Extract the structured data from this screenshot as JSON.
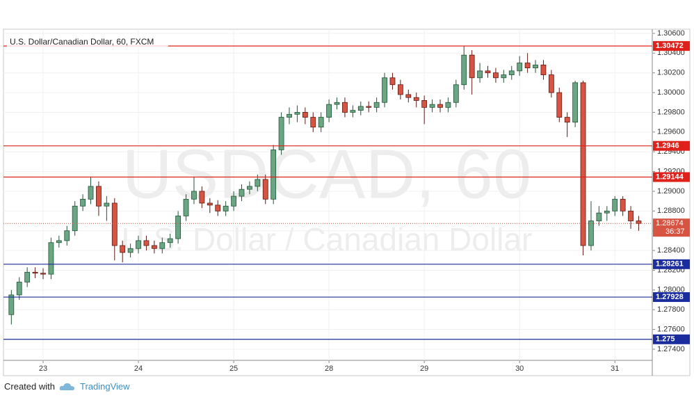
{
  "chart_data": {
    "type": "candlestick",
    "title": "U.S. Dollar/Canadian Dollar, 60, FXCM",
    "watermark": "USDCAD, 60",
    "watermark_subtitle": "U.S. Dollar / Canadian Dollar",
    "categories": [
      null,
      null,
      null,
      null,
      "23",
      null,
      null,
      null,
      null,
      null,
      null,
      null,
      null,
      null,
      null,
      null,
      "24",
      null,
      null,
      null,
      null,
      null,
      null,
      null,
      null,
      null,
      null,
      null,
      "25",
      null,
      null,
      null,
      null,
      null,
      null,
      null,
      null,
      null,
      null,
      null,
      "28",
      null,
      null,
      null,
      null,
      null,
      null,
      null,
      null,
      null,
      null,
      null,
      "29",
      null,
      null,
      null,
      null,
      null,
      null,
      null,
      null,
      null,
      null,
      null,
      "30",
      null,
      null,
      null,
      null,
      null,
      null,
      null,
      null,
      null,
      null,
      null,
      "31",
      null,
      null,
      null
    ],
    "open": [
      1.2775,
      1.2795,
      1.2808,
      1.2818,
      1.2817,
      1.2816,
      1.2848,
      1.285,
      1.286,
      1.2885,
      1.2892,
      1.2905,
      1.2885,
      1.2888,
      1.2845,
      1.2838,
      1.2842,
      1.285,
      1.2845,
      1.2842,
      1.2848,
      1.2852,
      1.2875,
      1.2892,
      1.29,
      1.2888,
      1.2886,
      1.288,
      1.2885,
      1.2895,
      1.2902,
      1.2905,
      1.2912,
      1.2892,
      1.2942,
      1.2975,
      1.2978,
      1.298,
      1.2975,
      1.2965,
      1.2975,
      1.2988,
      1.299,
      1.298,
      1.2982,
      1.2986,
      1.2985,
      1.299,
      1.3015,
      1.3008,
      1.2998,
      1.2995,
      1.2992,
      1.2985,
      1.2988,
      1.2985,
      1.299,
      1.3008,
      1.3038,
      1.3015,
      1.3022,
      1.302,
      1.3015,
      1.3018,
      1.3022,
      1.303,
      1.3025,
      1.3028,
      1.3018,
      1.3,
      1.2975,
      1.297,
      1.301,
      1.2845,
      1.287,
      1.2878,
      1.288,
      1.2892,
      1.288,
      1.287
    ],
    "high": [
      1.28,
      1.2813,
      1.2823,
      1.2823,
      1.2822,
      1.2853,
      1.2855,
      1.2865,
      1.289,
      1.2897,
      1.2915,
      1.291,
      1.2895,
      1.2893,
      1.285,
      1.2847,
      1.2855,
      1.2855,
      1.285,
      1.2853,
      1.2857,
      1.288,
      1.2897,
      1.2915,
      1.2905,
      1.2893,
      1.2891,
      1.289,
      1.29,
      1.2907,
      1.291,
      1.2917,
      1.2917,
      1.2947,
      1.298,
      1.2985,
      1.2987,
      1.2985,
      1.298,
      1.298,
      1.2993,
      1.2995,
      1.2995,
      1.2987,
      1.2991,
      1.2991,
      1.2995,
      1.302,
      1.302,
      1.3013,
      1.3003,
      1.3,
      1.2997,
      1.2993,
      1.2993,
      1.2995,
      1.3013,
      1.3047,
      1.3043,
      1.303,
      1.3027,
      1.3025,
      1.3023,
      1.3027,
      1.3037,
      1.304,
      1.3033,
      1.3033,
      1.3023,
      1.3005,
      1.298,
      1.3012,
      1.3012,
      1.289,
      1.2885,
      1.2885,
      1.2895,
      1.2895,
      1.2885,
      1.2875
    ],
    "low": [
      1.2765,
      1.279,
      1.2803,
      1.2812,
      1.2811,
      1.2811,
      1.2843,
      1.2845,
      1.2855,
      1.288,
      1.2887,
      1.2875,
      1.287,
      1.283,
      1.2828,
      1.2833,
      1.2837,
      1.284,
      1.2837,
      1.2837,
      1.2843,
      1.2847,
      1.287,
      1.2887,
      1.2883,
      1.2878,
      1.2875,
      1.2875,
      1.288,
      1.289,
      1.2897,
      1.29,
      1.2887,
      1.2887,
      1.2937,
      1.2968,
      1.297,
      1.2968,
      1.296,
      1.296,
      1.297,
      1.2983,
      1.2975,
      1.2975,
      1.2977,
      1.298,
      1.298,
      1.2985,
      1.3003,
      1.2993,
      1.299,
      1.2985,
      1.2968,
      1.298,
      1.298,
      1.298,
      1.2985,
      1.3003,
      1.2998,
      1.301,
      1.3015,
      1.301,
      1.301,
      1.3013,
      1.3017,
      1.302,
      1.302,
      1.3013,
      1.2995,
      1.297,
      1.2955,
      1.2965,
      1.2835,
      1.284,
      1.2865,
      1.287,
      1.2875,
      1.2875,
      1.2862,
      1.286
    ],
    "close": [
      1.2795,
      1.2808,
      1.2818,
      1.2817,
      1.2816,
      1.2848,
      1.285,
      1.286,
      1.2885,
      1.2892,
      1.2905,
      1.2885,
      1.2888,
      1.2845,
      1.2838,
      1.2842,
      1.285,
      1.2845,
      1.2842,
      1.2848,
      1.2852,
      1.2875,
      1.2892,
      1.29,
      1.2888,
      1.2886,
      1.288,
      1.2885,
      1.2895,
      1.2902,
      1.2905,
      1.2912,
      1.2892,
      1.2942,
      1.2975,
      1.2978,
      1.298,
      1.2975,
      1.2965,
      1.2975,
      1.2988,
      1.299,
      1.298,
      1.2982,
      1.2986,
      1.2985,
      1.299,
      1.3015,
      1.3008,
      1.2998,
      1.2995,
      1.2992,
      1.2985,
      1.2988,
      1.2985,
      1.299,
      1.3008,
      1.3038,
      1.3015,
      1.3022,
      1.302,
      1.3015,
      1.3018,
      1.3022,
      1.303,
      1.3025,
      1.3028,
      1.3018,
      1.3,
      1.2975,
      1.297,
      1.301,
      1.2845,
      1.287,
      1.2878,
      1.288,
      1.2892,
      1.288,
      1.287,
      1.28674
    ],
    "up_color": "#6ba583",
    "down_color": "#d75442",
    "ylim": [
      1.27287,
      1.30642
    ],
    "yticks": [
      {
        "value": 1.306,
        "label": "1.30600"
      },
      {
        "value": 1.304,
        "label": "1.30400"
      },
      {
        "value": 1.302,
        "label": "1.30200"
      },
      {
        "value": 1.3,
        "label": "1.30000"
      },
      {
        "value": 1.298,
        "label": "1.29800"
      },
      {
        "value": 1.296,
        "label": "1.29600"
      },
      {
        "value": 1.294,
        "label": "1.29400"
      },
      {
        "value": 1.292,
        "label": "1.29200"
      },
      {
        "value": 1.29,
        "label": "1.29000"
      },
      {
        "value": 1.288,
        "label": "1.28800"
      },
      {
        "value": 1.286,
        "label": "1.28600"
      },
      {
        "value": 1.284,
        "label": "1.28400"
      },
      {
        "value": 1.282,
        "label": "1.28200"
      },
      {
        "value": 1.28,
        "label": "1.28000"
      },
      {
        "value": 1.278,
        "label": "1.27800"
      },
      {
        "value": 1.276,
        "label": "1.27600"
      },
      {
        "value": 1.274,
        "label": "1.27400"
      }
    ],
    "grid": true,
    "levels": [
      {
        "value": 1.30472,
        "color": "#e0201b"
      },
      {
        "value": 1.2946,
        "color": "#e0201b"
      },
      {
        "value": 1.29144,
        "color": "#e0201b"
      },
      {
        "value": 1.28261,
        "color": "#1a2c9e"
      },
      {
        "value": 1.27928,
        "color": "#1a2c9e"
      },
      {
        "value": 1.275,
        "color": "#1a2c9e"
      }
    ],
    "last_price": 1.28674,
    "countdown": "36:37"
  },
  "footer": {
    "created_with": "Created with",
    "brand": "TradingView"
  }
}
